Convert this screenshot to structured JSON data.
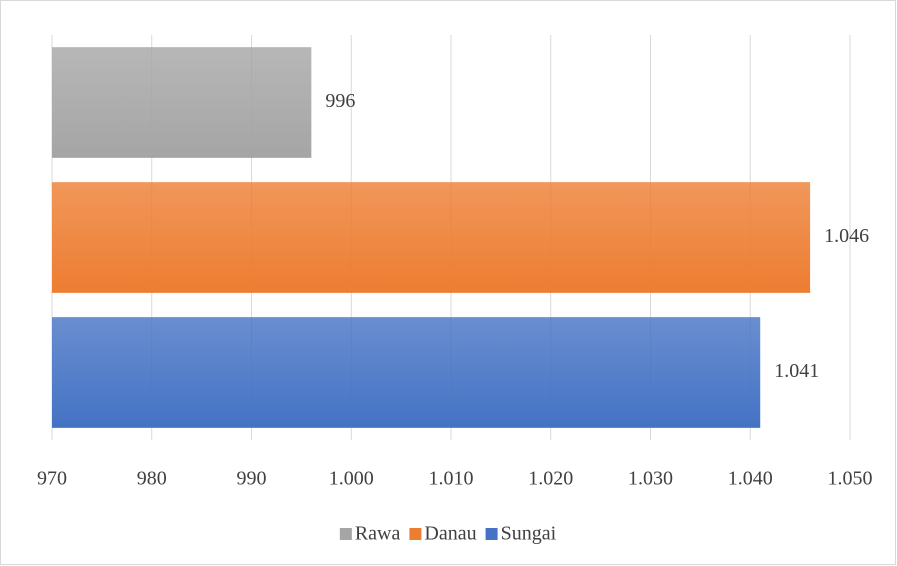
{
  "chart_data": {
    "type": "bar",
    "orientation": "horizontal",
    "series": [
      {
        "name": "Rawa",
        "color": "#a5a5a5",
        "values": [
          996
        ],
        "value_labels": [
          "996"
        ]
      },
      {
        "name": "Danau",
        "color": "#ed7d31",
        "values": [
          1046
        ],
        "value_labels": [
          "1.046"
        ]
      },
      {
        "name": "Sungai",
        "color": "#4472c4",
        "values": [
          1041
        ],
        "value_labels": [
          "1.041"
        ]
      }
    ],
    "xlim": [
      970,
      1050
    ],
    "xticks": [
      970,
      980,
      990,
      {
        "value": 1000,
        "label": "1.000"
      },
      {
        "value": 1010,
        "label": "1.010"
      },
      {
        "value": 1020,
        "label": "1.020"
      },
      {
        "value": 1030,
        "label": "1.030"
      },
      {
        "value": 1040,
        "label": "1.040"
      },
      {
        "value": 1050,
        "label": "1.050"
      }
    ],
    "grid": true,
    "legend": "bottom"
  }
}
